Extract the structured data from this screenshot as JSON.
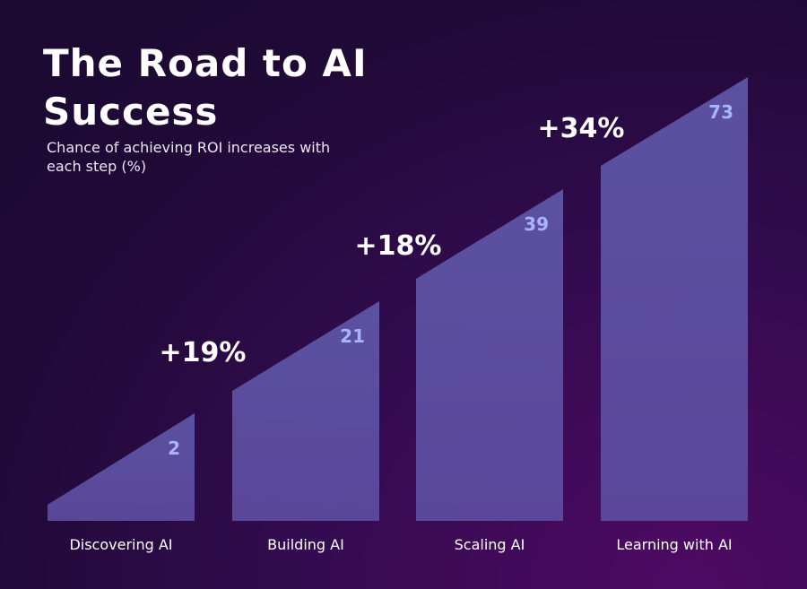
{
  "chart_data": {
    "type": "bar",
    "title": "The Road to AI Success",
    "subtitle": "Chance of achieving ROI increases with each step (%)",
    "categories": [
      "Discovering AI",
      "Building AI",
      "Scaling AI",
      "Learning with AI"
    ],
    "values": [
      2,
      21,
      39,
      73
    ],
    "deltas": [
      "+19%",
      "+18%",
      "+34%"
    ],
    "unit": "%",
    "bar_color": "#5a4f9c",
    "value_label_color": "#a9b4ff"
  }
}
